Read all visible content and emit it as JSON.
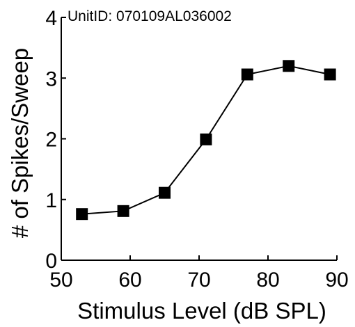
{
  "chart_data": {
    "type": "line",
    "annotation": "UnitID: 070109AL036002",
    "xlabel": "Stimulus Level (dB SPL)",
    "ylabel": "# of Spikes/Sweep",
    "xlim": [
      50,
      90
    ],
    "ylim": [
      0,
      4
    ],
    "x_ticks": [
      50,
      60,
      70,
      80,
      90
    ],
    "y_ticks": [
      0,
      1,
      2,
      3,
      4
    ],
    "x_tick_labels": [
      "50",
      "60",
      "70",
      "80",
      "90"
    ],
    "y_tick_labels": [
      "0",
      "1",
      "2",
      "3",
      "4"
    ],
    "grid": false,
    "marker": "square",
    "color": "#000000",
    "series": [
      {
        "x": [
          53,
          59,
          65,
          71,
          77,
          83,
          89
        ],
        "y": [
          0.76,
          0.81,
          1.11,
          1.99,
          3.06,
          3.2,
          3.06
        ]
      }
    ]
  }
}
